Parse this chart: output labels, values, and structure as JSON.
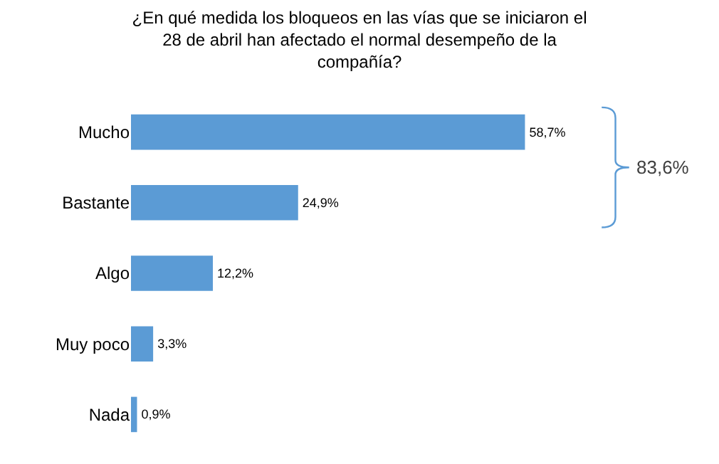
{
  "chart_data": {
    "type": "bar",
    "orientation": "horizontal",
    "title": "¿En qué medida los bloqueos en las vías que se iniciaron el\n28 de abril han afectado el normal desempeño de la\ncompañía?",
    "categories": [
      "Mucho",
      "Bastante",
      "Algo",
      "Muy poco",
      "Nada"
    ],
    "values": [
      58.7,
      24.9,
      12.2,
      3.3,
      0.9
    ],
    "value_labels": [
      "58,7%",
      "24,9%",
      "12,2%",
      "3,3%",
      "0,9%"
    ],
    "color": "#5b9bd5",
    "tick_labels": "y",
    "grid": false,
    "legend": false,
    "annotations": [
      "83,6%"
    ]
  }
}
